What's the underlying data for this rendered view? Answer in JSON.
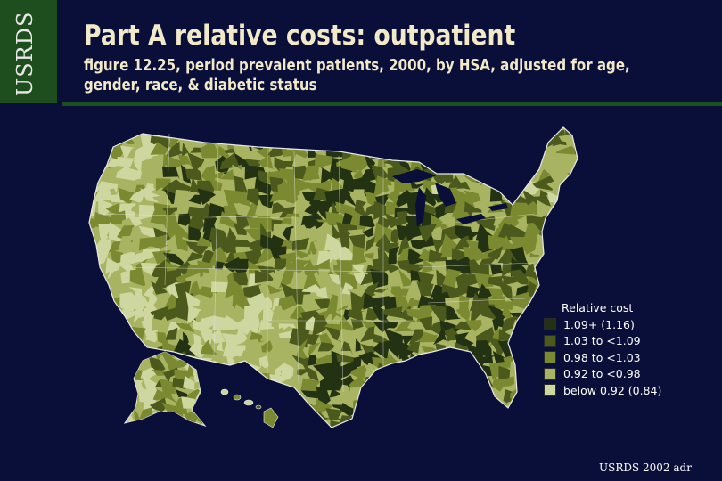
{
  "logo": {
    "text": "USRDS"
  },
  "title": "Part A relative costs: outpatient",
  "subtitle": "figure 12.25, period prevalent patients, 2000, by HSA, adjusted for age, gender, race, & diabetic status",
  "legend": {
    "title": "Relative cost",
    "items": [
      {
        "label": "1.09+ (1.16)",
        "color": "#233212"
      },
      {
        "label": "1.03 to <1.09",
        "color": "#4b5a1c"
      },
      {
        "label": "0.98 to <1.03",
        "color": "#7b8a30"
      },
      {
        "label": "0.92 to <0.98",
        "color": "#a8b462"
      },
      {
        "label": "below 0.92 (0.84)",
        "color": "#cfd7a0"
      }
    ]
  },
  "footer": "USRDS 2002 adr",
  "colors": {
    "background": "#0a0f3a",
    "accent_green": "#1e4d1e",
    "title_text": "#f2e9c9"
  }
}
